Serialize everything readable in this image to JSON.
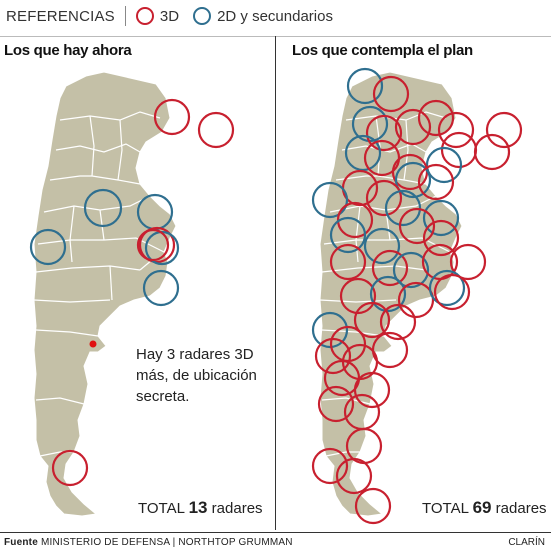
{
  "legend": {
    "heading": "REFERENCIAS",
    "items": [
      {
        "label": "3D",
        "color": "#c8202f"
      },
      {
        "label": "2D y secundarios",
        "color": "#2f6f8f"
      }
    ]
  },
  "colors": {
    "land": "#c4c0a7",
    "border": "#ffffff",
    "radar_3d": "#c8202f",
    "radar_2d": "#2f6f8f"
  },
  "left_panel": {
    "title": "Los que hay ahora",
    "note": "Hay 3 radares 3D más, de ubicación secreta.",
    "total_label": "TOTAL",
    "total_value": "13",
    "total_unit": "radares"
  },
  "right_panel": {
    "title": "Los que contempla el plan",
    "total_label": "TOTAL",
    "total_value": "69",
    "total_unit": "radares"
  },
  "footer": {
    "source_label": "Fuente",
    "source_text": "MINISTERIO DE DEFENSA | NORTHTOP GRUMMAN",
    "credit": "CLARÍN"
  }
}
